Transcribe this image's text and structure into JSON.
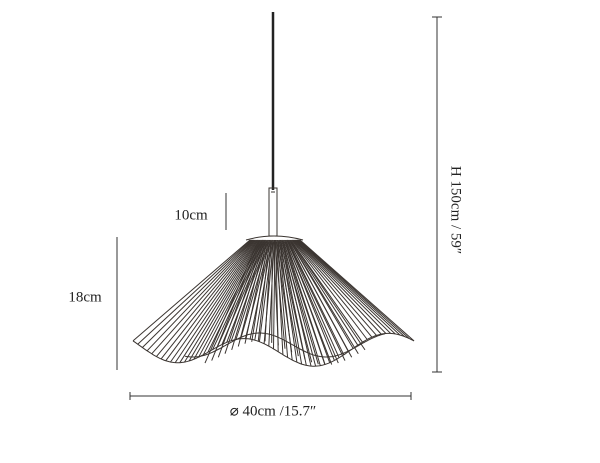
{
  "dimensions": {
    "fitting_height": "10cm",
    "shade_height": "18cm",
    "total_height": "H 150cm / 59″",
    "diameter": "⌀ 40cm /15.7″"
  }
}
